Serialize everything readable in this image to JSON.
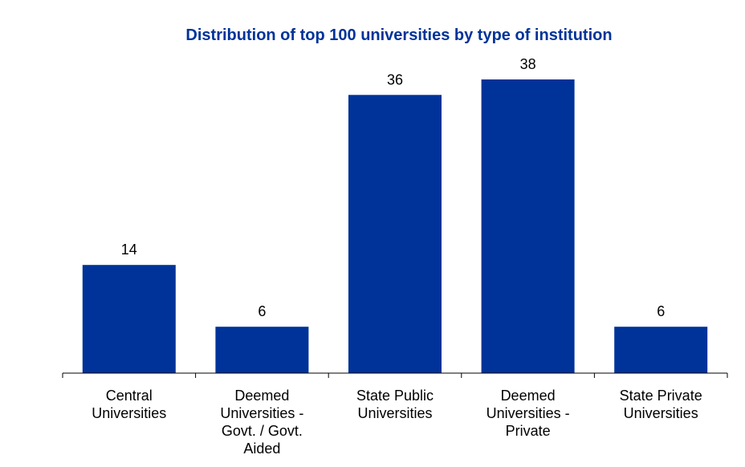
{
  "chart_data": {
    "type": "bar",
    "title": "Distribution of top 100 universities by type of institution",
    "categories": [
      "Central Universities",
      "Deemed Universities - Govt. / Govt. Aided",
      "State Public Universities",
      "Deemed Universities - Private",
      "State Private Universities"
    ],
    "category_lines": [
      [
        "Central",
        "Universities"
      ],
      [
        "Deemed",
        "Universities -",
        "Govt. / Govt.",
        "Aided"
      ],
      [
        "State Public",
        "Universities"
      ],
      [
        "Deemed",
        "Universities -",
        "Private"
      ],
      [
        "State Private",
        "Universities"
      ]
    ],
    "values": [
      14,
      6,
      36,
      38,
      6
    ],
    "data_labels": [
      "14",
      "6",
      "36",
      "38",
      "6"
    ],
    "xlabel": "",
    "ylabel": "",
    "ylim": [
      0,
      38
    ],
    "grid": false,
    "legend": "none",
    "bar_color": "#003399",
    "title_color": "#003399"
  }
}
